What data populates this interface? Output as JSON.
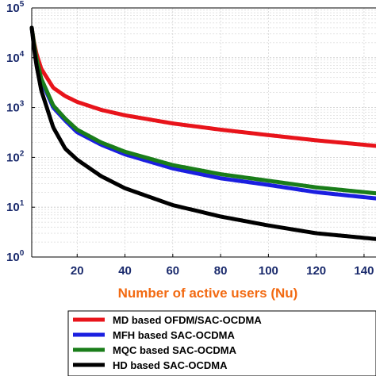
{
  "chart_data": {
    "type": "line",
    "xlabel": "Number of active users (Nu)",
    "ylabel": "",
    "y_scale": "log",
    "xlim": [
      1,
      145
    ],
    "ylim": [
      1,
      100000
    ],
    "grid": true,
    "legend_position": "bottom",
    "x_ticks": [
      "20",
      "40",
      "60",
      "80",
      "100",
      "120",
      "140"
    ],
    "y_ticks": [
      {
        "base": "10",
        "exp": "0"
      },
      {
        "base": "10",
        "exp": "1"
      },
      {
        "base": "10",
        "exp": "2"
      },
      {
        "base": "10",
        "exp": "3"
      },
      {
        "base": "10",
        "exp": "4"
      },
      {
        "base": "10",
        "exp": "5"
      }
    ],
    "series": [
      {
        "name": "MD based OFDM/SAC-OCDMA",
        "color": "#e8141b",
        "points": [
          [
            1,
            40000
          ],
          [
            2,
            20000
          ],
          [
            3,
            12000
          ],
          [
            5,
            6000
          ],
          [
            10,
            2500
          ],
          [
            15,
            1700
          ],
          [
            20,
            1300
          ],
          [
            30,
            900
          ],
          [
            40,
            700
          ],
          [
            60,
            480
          ],
          [
            80,
            360
          ],
          [
            100,
            280
          ],
          [
            120,
            220
          ],
          [
            145,
            170
          ]
        ]
      },
      {
        "name": "MFH based SAC-OCDMA",
        "color": "#1b1fe0",
        "points": [
          [
            1,
            40000
          ],
          [
            2,
            18000
          ],
          [
            3,
            9000
          ],
          [
            5,
            3500
          ],
          [
            10,
            1000
          ],
          [
            15,
            550
          ],
          [
            20,
            320
          ],
          [
            30,
            180
          ],
          [
            40,
            115
          ],
          [
            60,
            60
          ],
          [
            80,
            38
          ],
          [
            100,
            28
          ],
          [
            120,
            20
          ],
          [
            145,
            15
          ]
        ]
      },
      {
        "name": "MQC based SAC-OCDMA",
        "color": "#1a7d1a",
        "points": [
          [
            1,
            40000
          ],
          [
            2,
            18500
          ],
          [
            3,
            9500
          ],
          [
            5,
            3800
          ],
          [
            10,
            1100
          ],
          [
            15,
            600
          ],
          [
            20,
            360
          ],
          [
            30,
            200
          ],
          [
            40,
            130
          ],
          [
            60,
            70
          ],
          [
            80,
            46
          ],
          [
            100,
            34
          ],
          [
            120,
            25
          ],
          [
            145,
            19
          ]
        ]
      },
      {
        "name": "HD based SAC-OCDMA",
        "color": "#000000",
        "points": [
          [
            1,
            40000
          ],
          [
            2,
            15000
          ],
          [
            3,
            7000
          ],
          [
            5,
            2200
          ],
          [
            10,
            400
          ],
          [
            15,
            150
          ],
          [
            20,
            90
          ],
          [
            30,
            42
          ],
          [
            40,
            24
          ],
          [
            60,
            11
          ],
          [
            80,
            6.5
          ],
          [
            100,
            4.3
          ],
          [
            120,
            3
          ],
          [
            145,
            2.3
          ]
        ]
      }
    ]
  }
}
